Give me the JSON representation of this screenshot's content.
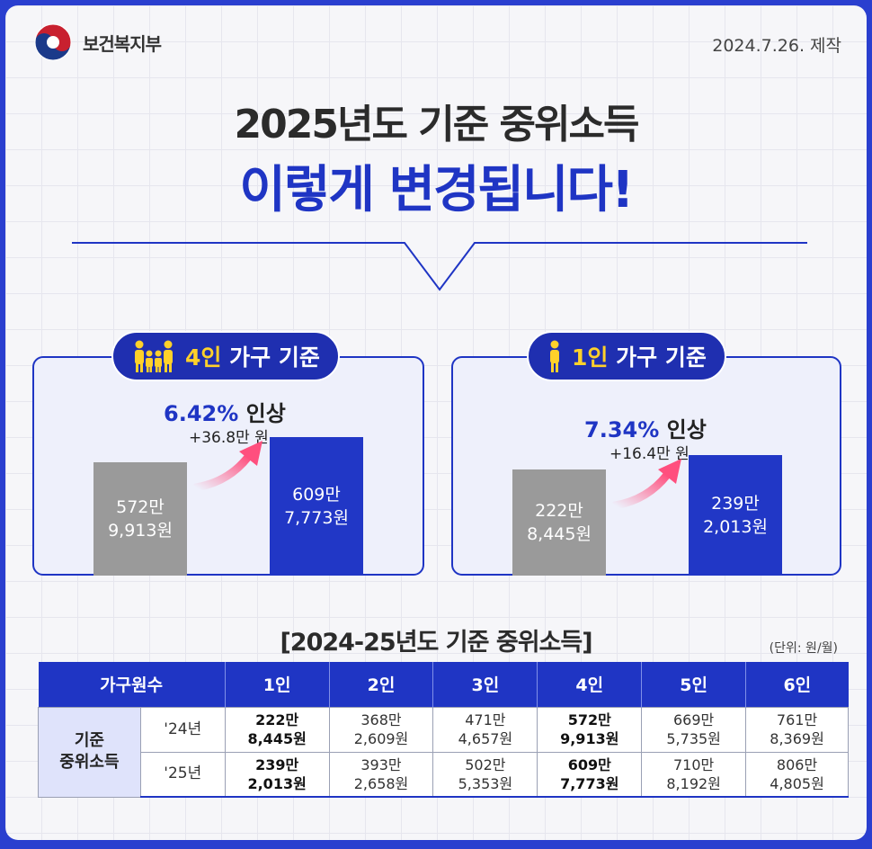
{
  "header": {
    "ministry": "보건복지부",
    "date": "2024.7.26. 제작",
    "title_line1": "2025년도 기준 중위소득",
    "title_line2": "이렇게 변경됩니다!"
  },
  "colors": {
    "accent": "#1f35c4",
    "old_bar": "#9a9a9a",
    "highlight": "#ffd12a",
    "arrow": "#ff5f8a"
  },
  "cards": [
    {
      "label_num": "4인",
      "label_rest": "가구 기준",
      "icon": "family-icon",
      "pct": "6.42%",
      "pct_word": "인상",
      "increase": "+36.8만 원",
      "old_line1": "572만",
      "old_line2": "9,913원",
      "new_line1": "609만",
      "new_line2": "7,773원"
    },
    {
      "label_num": "1인",
      "label_rest": "가구 기준",
      "icon": "person-icon",
      "pct": "7.34%",
      "pct_word": "인상",
      "increase": "+16.4만 원",
      "old_line1": "222만",
      "old_line2": "8,445원",
      "new_line1": "239만",
      "new_line2": "2,013원"
    }
  ],
  "table": {
    "title": "[2024-25년도 기준 중위소득]",
    "unit": "(단위: 원/월)",
    "header_first": "가구원수",
    "columns": [
      "1인",
      "2인",
      "3인",
      "4인",
      "5인",
      "6인"
    ],
    "row_head_line1": "기준",
    "row_head_line2": "중위소득",
    "rows": [
      {
        "year": "'24년",
        "cells": [
          {
            "l1": "222만",
            "l2": "8,445원"
          },
          {
            "l1": "368만",
            "l2": "2,609원"
          },
          {
            "l1": "471만",
            "l2": "4,657원"
          },
          {
            "l1": "572만",
            "l2": "9,913원"
          },
          {
            "l1": "669만",
            "l2": "5,735원"
          },
          {
            "l1": "761만",
            "l2": "8,369원"
          }
        ]
      },
      {
        "year": "'25년",
        "cells": [
          {
            "l1": "239만",
            "l2": "2,013원"
          },
          {
            "l1": "393만",
            "l2": "2,658원"
          },
          {
            "l1": "502만",
            "l2": "5,353원"
          },
          {
            "l1": "609만",
            "l2": "7,773원"
          },
          {
            "l1": "710만",
            "l2": "8,192원"
          },
          {
            "l1": "806만",
            "l2": "4,805원"
          }
        ]
      }
    ]
  }
}
